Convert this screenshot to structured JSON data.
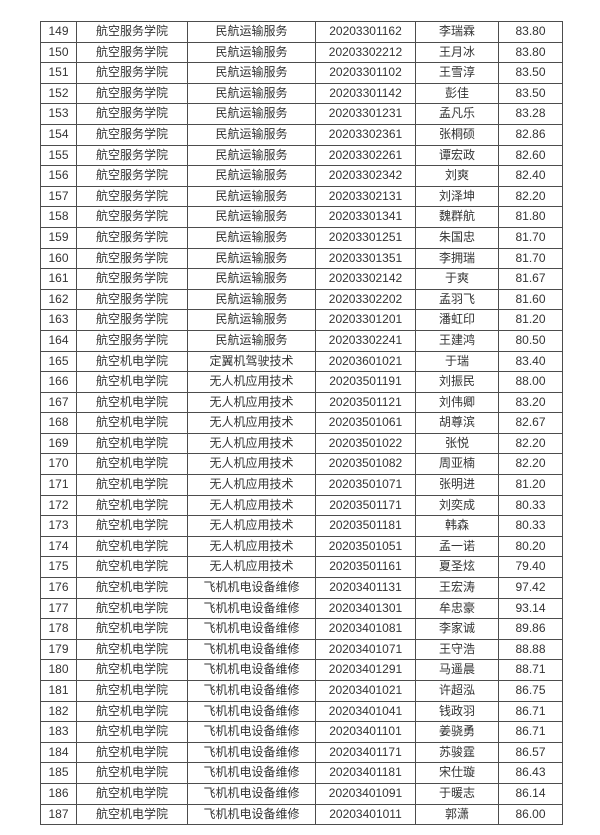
{
  "colors": {
    "page_background": "#ffffff",
    "table_border": "#4d4d4d",
    "table_text": "#333333"
  },
  "table": {
    "first_row_number": "149",
    "last_row_number": "187",
    "rows": [
      [
        "149",
        "航空服务学院",
        "民航运输服务",
        "20203301162",
        "李瑞霖",
        "83.80"
      ],
      [
        "150",
        "航空服务学院",
        "民航运输服务",
        "20203302212",
        "王月冰",
        "83.80"
      ],
      [
        "151",
        "航空服务学院",
        "民航运输服务",
        "20203301102",
        "王雪淳",
        "83.50"
      ],
      [
        "152",
        "航空服务学院",
        "民航运输服务",
        "20203301142",
        "彭佳",
        "83.50"
      ],
      [
        "153",
        "航空服务学院",
        "民航运输服务",
        "20203301231",
        "孟凡乐",
        "83.28"
      ],
      [
        "154",
        "航空服务学院",
        "民航运输服务",
        "20203302361",
        "张桐硕",
        "82.86"
      ],
      [
        "155",
        "航空服务学院",
        "民航运输服务",
        "20203302261",
        "谭宏政",
        "82.60"
      ],
      [
        "156",
        "航空服务学院",
        "民航运输服务",
        "20203302342",
        "刘爽",
        "82.40"
      ],
      [
        "157",
        "航空服务学院",
        "民航运输服务",
        "20203302131",
        "刘泽坤",
        "82.20"
      ],
      [
        "158",
        "航空服务学院",
        "民航运输服务",
        "20203301341",
        "魏群航",
        "81.80"
      ],
      [
        "159",
        "航空服务学院",
        "民航运输服务",
        "20203301251",
        "朱国忠",
        "81.70"
      ],
      [
        "160",
        "航空服务学院",
        "民航运输服务",
        "20203301351",
        "李拥瑞",
        "81.70"
      ],
      [
        "161",
        "航空服务学院",
        "民航运输服务",
        "20203302142",
        "于爽",
        "81.67"
      ],
      [
        "162",
        "航空服务学院",
        "民航运输服务",
        "20203302202",
        "孟羽飞",
        "81.60"
      ],
      [
        "163",
        "航空服务学院",
        "民航运输服务",
        "20203301201",
        "潘虹印",
        "81.20"
      ],
      [
        "164",
        "航空服务学院",
        "民航运输服务",
        "20203302241",
        "王建鸿",
        "80.50"
      ],
      [
        "165",
        "航空机电学院",
        "定翼机驾驶技术",
        "20203601021",
        "于瑞",
        "83.40"
      ],
      [
        "166",
        "航空机电学院",
        "无人机应用技术",
        "20203501191",
        "刘振民",
        "88.00"
      ],
      [
        "167",
        "航空机电学院",
        "无人机应用技术",
        "20203501121",
        "刘伟卿",
        "83.20"
      ],
      [
        "168",
        "航空机电学院",
        "无人机应用技术",
        "20203501061",
        "胡尊滨",
        "82.67"
      ],
      [
        "169",
        "航空机电学院",
        "无人机应用技术",
        "20203501022",
        "张悦",
        "82.20"
      ],
      [
        "170",
        "航空机电学院",
        "无人机应用技术",
        "20203501082",
        "周亚楠",
        "82.20"
      ],
      [
        "171",
        "航空机电学院",
        "无人机应用技术",
        "20203501071",
        "张明进",
        "81.20"
      ],
      [
        "172",
        "航空机电学院",
        "无人机应用技术",
        "20203501171",
        "刘奕成",
        "80.33"
      ],
      [
        "173",
        "航空机电学院",
        "无人机应用技术",
        "20203501181",
        "韩森",
        "80.33"
      ],
      [
        "174",
        "航空机电学院",
        "无人机应用技术",
        "20203501051",
        "孟一诺",
        "80.20"
      ],
      [
        "175",
        "航空机电学院",
        "无人机应用技术",
        "20203501161",
        "夏圣炫",
        "79.40"
      ],
      [
        "176",
        "航空机电学院",
        "飞机机电设备维修",
        "20203401131",
        "王宏涛",
        "97.42"
      ],
      [
        "177",
        "航空机电学院",
        "飞机机电设备维修",
        "20203401301",
        "牟忠豪",
        "93.14"
      ],
      [
        "178",
        "航空机电学院",
        "飞机机电设备维修",
        "20203401081",
        "李家诚",
        "89.86"
      ],
      [
        "179",
        "航空机电学院",
        "飞机机电设备维修",
        "20203401071",
        "王守浩",
        "88.88"
      ],
      [
        "180",
        "航空机电学院",
        "飞机机电设备维修",
        "20203401291",
        "马遥晨",
        "88.71"
      ],
      [
        "181",
        "航空机电学院",
        "飞机机电设备维修",
        "20203401021",
        "许超泓",
        "86.75"
      ],
      [
        "182",
        "航空机电学院",
        "飞机机电设备维修",
        "20203401041",
        "钱政羽",
        "86.71"
      ],
      [
        "183",
        "航空机电学院",
        "飞机机电设备维修",
        "20203401101",
        "姜骁勇",
        "86.71"
      ],
      [
        "184",
        "航空机电学院",
        "飞机机电设备维修",
        "20203401171",
        "苏骏霆",
        "86.57"
      ],
      [
        "185",
        "航空机电学院",
        "飞机机电设备维修",
        "20203401181",
        "宋仕璇",
        "86.43"
      ],
      [
        "186",
        "航空机电学院",
        "飞机机电设备维修",
        "20203401091",
        "于暖志",
        "86.14"
      ],
      [
        "187",
        "航空机电学院",
        "飞机机电设备维修",
        "20203401011",
        "郭潇",
        "86.00"
      ]
    ]
  }
}
